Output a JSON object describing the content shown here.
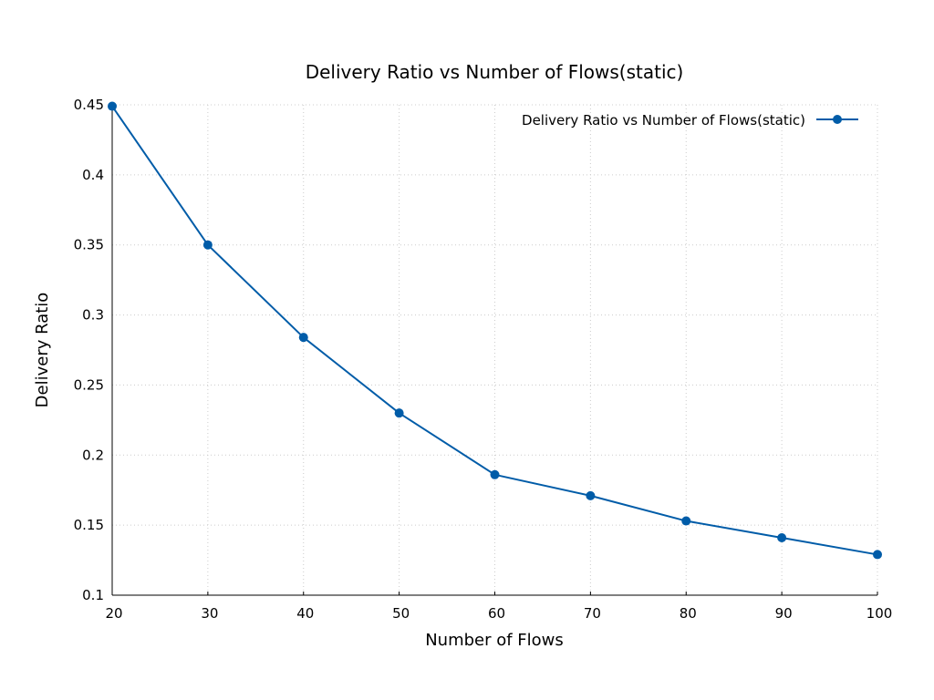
{
  "chart_data": {
    "type": "line",
    "title": "Delivery Ratio vs Number of Flows(static)",
    "xlabel": "Number of Flows",
    "ylabel": "Delivery Ratio",
    "xlim": [
      20,
      100
    ],
    "ylim": [
      0.1,
      0.45
    ],
    "x_ticks": [
      20,
      30,
      40,
      50,
      60,
      70,
      80,
      90,
      100
    ],
    "y_ticks": [
      "0.1",
      "0.15",
      "0.2",
      "0.25",
      "0.3",
      "0.35",
      "0.4",
      "0.45"
    ],
    "grid": true,
    "legend_position": "top-right",
    "series": [
      {
        "name": "Delivery Ratio vs Number of Flows(static)",
        "color": "#005ca8",
        "marker": "circle",
        "x": [
          20,
          30,
          40,
          50,
          60,
          70,
          80,
          90,
          100
        ],
        "y": [
          0.449,
          0.35,
          0.284,
          0.23,
          0.186,
          0.171,
          0.153,
          0.141,
          0.129
        ]
      }
    ]
  }
}
